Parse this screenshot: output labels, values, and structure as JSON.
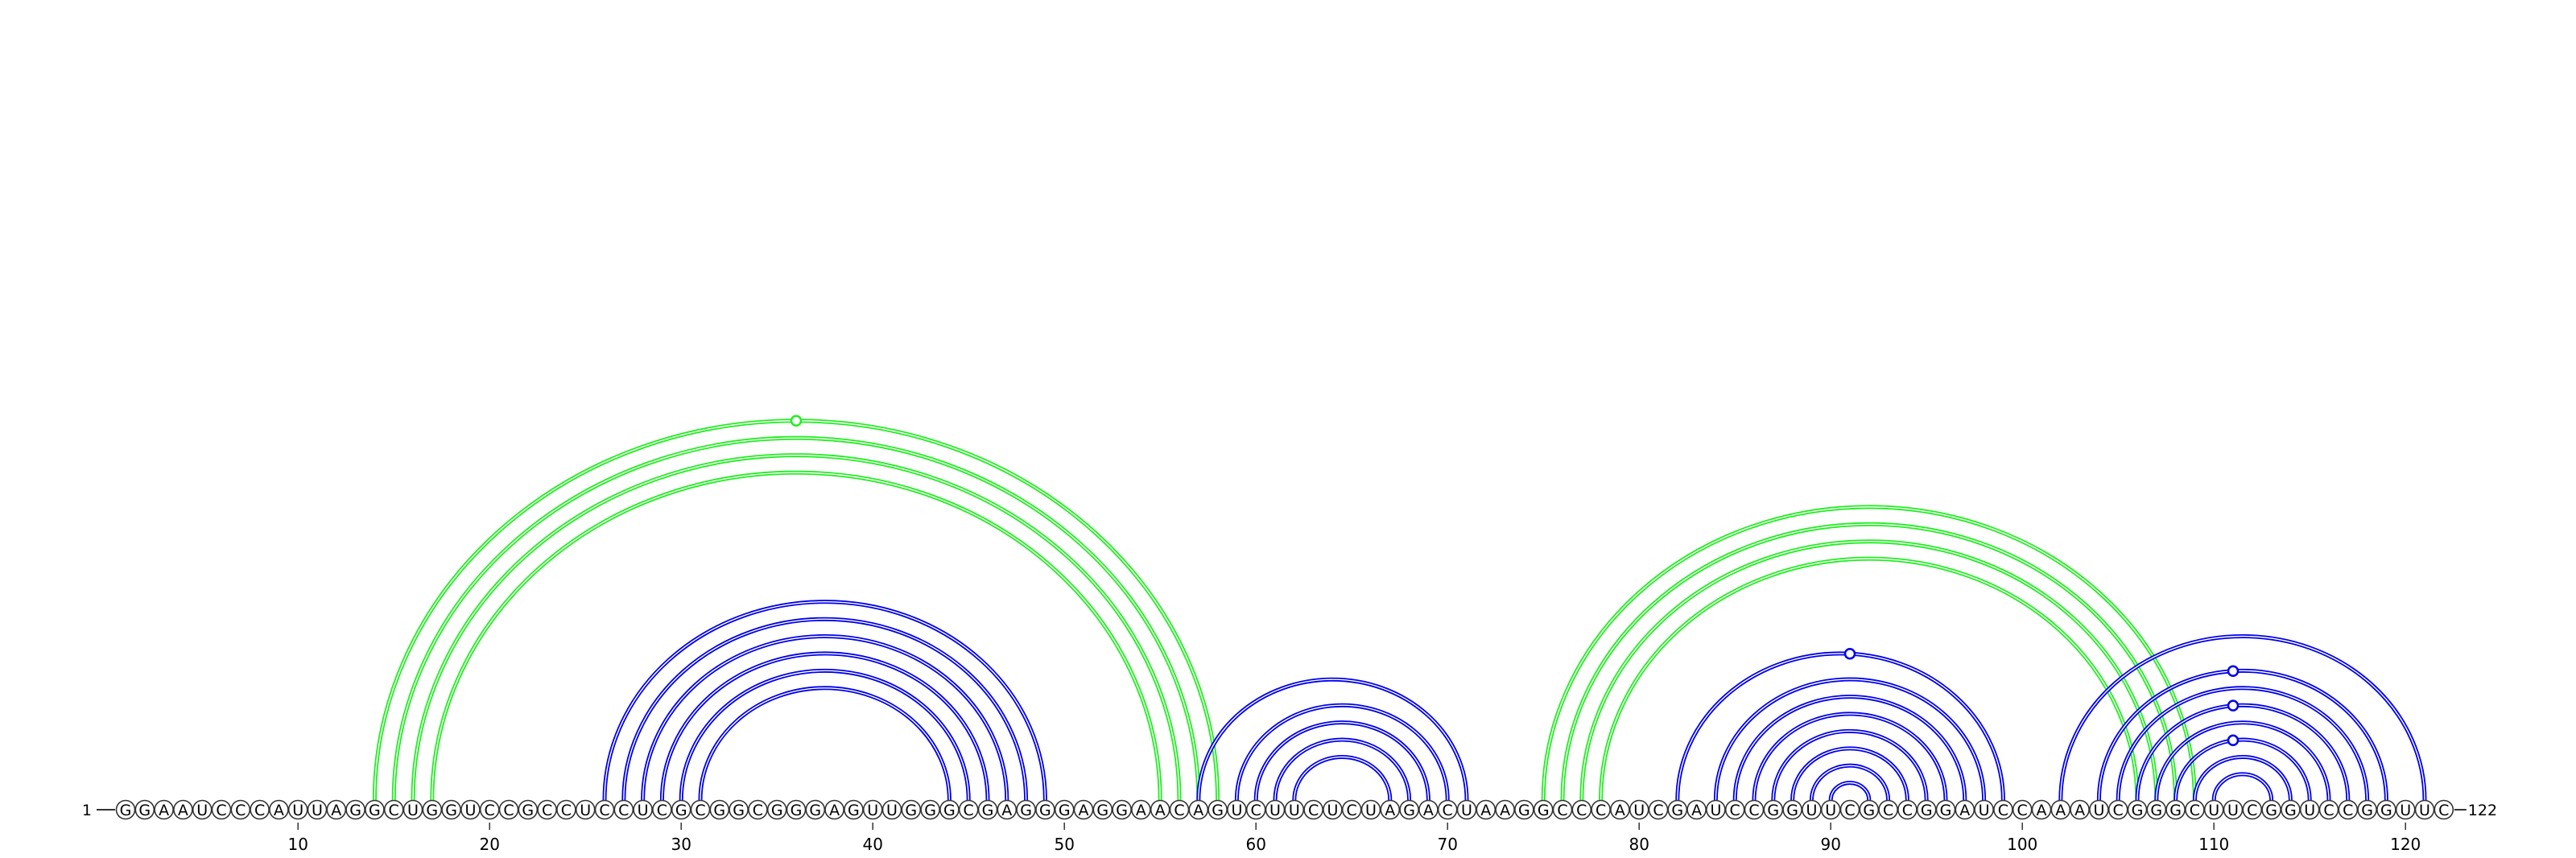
{
  "diagram": {
    "start_label": "1",
    "end_label": "122",
    "sequence": "GGAAUCCCAUUAGGCUGGUCCGCCUCCUCGCGGCGGGAGUUGGGCGAGGGAGGAACAGUCUUCUCUAGACUAAGGCCCAUCGAUCCGGUUCGCCGGAUCCAAAUCGGGCUUCGGUCCGGUUC",
    "ticks": [
      10,
      20,
      30,
      40,
      50,
      60,
      70,
      80,
      90,
      100,
      110,
      120
    ],
    "colors": {
      "primary_pairs": "#0000ee",
      "secondary_pairs": "#22ee22",
      "nucleotide_stroke": "#333333"
    },
    "arc_groups": [
      {
        "color": "green",
        "pairs": [
          [
            14,
            58
          ],
          [
            15,
            57
          ],
          [
            16,
            56
          ],
          [
            17,
            55
          ]
        ],
        "markers": [
          36
        ]
      },
      {
        "color": "blue",
        "pairs": [
          [
            26,
            49
          ],
          [
            27,
            48
          ],
          [
            28,
            47
          ],
          [
            29,
            46
          ],
          [
            30,
            45
          ],
          [
            31,
            44
          ]
        ],
        "markers": []
      },
      {
        "color": "blue",
        "pairs": [
          [
            57,
            71
          ],
          [
            59,
            70
          ],
          [
            60,
            69
          ],
          [
            61,
            68
          ],
          [
            62,
            67
          ]
        ],
        "markers": []
      },
      {
        "color": "green",
        "pairs": [
          [
            75,
            109
          ],
          [
            76,
            108
          ],
          [
            77,
            107
          ],
          [
            78,
            106
          ]
        ],
        "markers": []
      },
      {
        "color": "blue",
        "pairs": [
          [
            82,
            99
          ],
          [
            84,
            98
          ],
          [
            85,
            97
          ],
          [
            86,
            96
          ],
          [
            87,
            95
          ],
          [
            88,
            94
          ],
          [
            89,
            93
          ],
          [
            90,
            92
          ]
        ],
        "markers": [
          91
        ]
      },
      {
        "color": "blue",
        "pairs": [
          [
            102,
            121
          ],
          [
            104,
            119
          ],
          [
            105,
            118
          ],
          [
            106,
            117
          ],
          [
            107,
            116
          ],
          [
            108,
            115
          ],
          [
            109,
            114
          ],
          [
            110,
            113
          ]
        ],
        "markers": [
          111,
          111,
          111
        ]
      }
    ]
  }
}
